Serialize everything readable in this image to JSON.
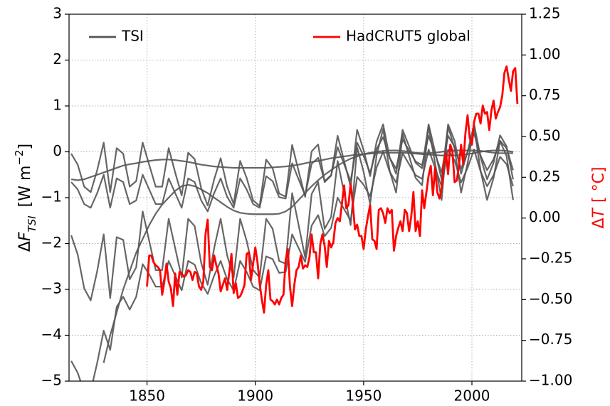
{
  "chart_data": {
    "type": "line",
    "ylabel": {
      "delta": "Δ",
      "symbol": "F",
      "sub": "TSI",
      "unit": "[W m",
      "sup": "−2",
      "end": "]"
    },
    "y2label": {
      "delta": "Δ",
      "symbol": "T",
      "unit": "[ °C]"
    },
    "xlim": [
      1814,
      2023
    ],
    "xticks": [
      1850,
      1900,
      1950,
      2000
    ],
    "ylim": [
      -5,
      3
    ],
    "yticks": [
      {
        "value": -5,
        "label": "−5"
      },
      {
        "value": -4,
        "label": "−4"
      },
      {
        "value": -3,
        "label": "−3"
      },
      {
        "value": -2,
        "label": "−2"
      },
      {
        "value": -1,
        "label": "−1"
      },
      0,
      1,
      2,
      3
    ],
    "y2lim": [
      -1,
      1.25
    ],
    "y2ticks": [
      {
        "value": -1,
        "label": "−1.00"
      },
      {
        "value": -0.75,
        "label": "−0.75"
      },
      {
        "value": -0.5,
        "label": "−0.50"
      },
      {
        "value": -0.25,
        "label": "−0.25"
      },
      {
        "value": 0,
        "label": "0.00"
      },
      {
        "value": 0.25,
        "label": "0.25"
      },
      {
        "value": 0.5,
        "label": "0.50"
      },
      {
        "value": 0.75,
        "label": "0.75"
      },
      {
        "value": 1,
        "label": "1.00"
      },
      {
        "value": 1.25,
        "label": "1.25"
      }
    ],
    "grid": true,
    "series": [
      {
        "name": "TSI",
        "color": "#555555",
        "axis": "y",
        "x": [
          1815,
          1818,
          1821,
          1824,
          1827,
          1830,
          1833,
          1836,
          1839,
          1842,
          1845,
          1848,
          1851,
          1854,
          1857,
          1860,
          1863,
          1866,
          1869,
          1872,
          1875,
          1878,
          1881,
          1884,
          1887,
          1890,
          1893,
          1896,
          1899,
          1902,
          1905,
          1908,
          1911,
          1914,
          1917,
          1920,
          1923,
          1926,
          1929,
          1932,
          1935,
          1938,
          1941,
          1944,
          1947,
          1950,
          1953,
          1956,
          1959,
          1962,
          1965,
          1968,
          1971,
          1974,
          1977,
          1980,
          1983,
          1986,
          1989,
          1992,
          1995,
          1998,
          2001,
          2004,
          2007,
          2010,
          2013,
          2016,
          2019
        ],
        "values": [
          [
            -0.66,
            -0.82,
            -1.14,
            -1.22,
            -0.9,
            -0.5,
            -1.22,
            -0.58,
            -0.66,
            -1.14,
            -1.06,
            -0.5,
            -0.82,
            -1.14,
            -1.14,
            -0.58,
            -0.9,
            -1.22,
            -0.58,
            -0.66,
            -1.06,
            -1.3,
            -0.9,
            -0.58,
            -0.98,
            -1.22,
            -0.58,
            -0.82,
            -1.14,
            -1.22,
            -0.53,
            -0.64,
            -0.99,
            -1.02,
            -0.25,
            -0.6,
            -0.95,
            -0.26,
            -0.13,
            -0.64,
            -0.51,
            0.1,
            -0.27,
            -0.64,
            0.2,
            -0.09,
            -0.46,
            0.06,
            0.32,
            -0.13,
            -0.37,
            0.27,
            0.03,
            -0.21,
            -0.29,
            0.35,
            -0.05,
            -0.45,
            0.35,
            0.11,
            -0.37,
            0,
            0.4,
            -0.08,
            -0.4,
            -0.16,
            0.24,
            0.08,
            -0.4
          ],
          [
            -0.04,
            -0.28,
            -0.76,
            -0.88,
            -0.4,
            0.2,
            -0.88,
            0.08,
            -0.04,
            -0.76,
            -0.64,
            0.2,
            -0.28,
            -0.76,
            -0.76,
            0.08,
            -0.45,
            -0.95,
            -0.02,
            -0.16,
            -0.79,
            -1.17,
            -0.6,
            -0.14,
            -0.76,
            -1.14,
            -0.2,
            -0.57,
            -1.06,
            -1.18,
            -0.17,
            -0.36,
            -0.91,
            -0.98,
            0.15,
            -0.42,
            -0.98,
            0.01,
            0.16,
            -0.66,
            -0.52,
            0.35,
            -0.2,
            -0.76,
            0.48,
            0.04,
            -0.53,
            0.22,
            0.6,
            -0.12,
            -0.48,
            0.48,
            0.12,
            -0.24,
            -0.36,
            0.6,
            0,
            -0.6,
            0.6,
            0.24,
            -0.48,
            0,
            0.6,
            -0.12,
            -0.6,
            -0.24,
            0.36,
            0.12,
            -0.6
          ],
          [
            -0.6,
            -0.62,
            -0.6,
            -0.55,
            -0.5,
            -0.45,
            -0.4,
            -0.35,
            -0.3,
            -0.27,
            -0.25,
            -0.22,
            -0.2,
            -0.18,
            -0.17,
            -0.17,
            -0.18,
            -0.2,
            -0.22,
            -0.25,
            -0.28,
            -0.3,
            -0.32,
            -0.33,
            -0.34,
            -0.35,
            -0.35,
            -0.35,
            -0.35,
            -0.35,
            -0.35,
            -0.34,
            -0.33,
            -0.32,
            -0.3,
            -0.28,
            -0.25,
            -0.22,
            -0.2,
            -0.17,
            -0.14,
            -0.12,
            -0.1,
            -0.08,
            -0.06,
            -0.05,
            -0.04,
            -0.03,
            -0.02,
            -0.02,
            -0.02,
            -0.02,
            -0.03,
            -0.04,
            -0.05,
            -0.06,
            -0.07,
            -0.08,
            -0.08,
            -0.08,
            -0.07,
            -0.05,
            -0.03,
            0,
            0.02,
            0.03,
            0.03,
            0.02,
            0
          ],
          [
            null,
            null,
            null,
            null,
            null,
            -4.6,
            -4.0,
            -3.5,
            -3.0,
            -2.6,
            -2.2,
            -1.9,
            -1.6,
            -1.35,
            -1.15,
            -1.0,
            -0.85,
            -0.75,
            -0.72,
            -0.75,
            -0.82,
            -0.9,
            -1.0,
            -1.1,
            -1.2,
            -1.28,
            -1.33,
            -1.35,
            -1.36,
            -1.36,
            -1.36,
            -1.36,
            -1.35,
            -1.3,
            -1.2,
            -1.05,
            -0.9,
            -0.75,
            -0.62,
            -0.5,
            -0.4,
            -0.3,
            -0.22,
            -0.15,
            -0.1,
            -0.05,
            -0.02,
            0,
            0.02,
            0.03,
            0.03,
            0.02,
            0,
            -0.02,
            -0.03,
            -0.03,
            -0.02,
            0,
            0.02,
            0.03,
            0.03,
            0.03,
            0.03,
            0.02,
            0,
            -0.02,
            -0.03,
            -0.03,
            -0.03
          ],
          [
            -1.82,
            -2.24,
            -2.98,
            -3.24,
            -2.6,
            -1.8,
            -3.19,
            -1.86,
            -1.92,
            -2.78,
            -2.52,
            -1.3,
            -1.94,
            -2.58,
            -2.58,
            -1.46,
            -2.1,
            -2.74,
            -1.46,
            -1.62,
            -2.42,
            -2.9,
            -2.1,
            -1.46,
            -2.26,
            -2.74,
            -1.46,
            -1.94,
            -2.58,
            -2.74,
            -1.46,
            -1.68,
            -2.38,
            -2.44,
            -0.9,
            -1.6,
            -2.3,
            -0.92,
            -0.66,
            -1.68,
            -1.42,
            -0.2,
            -0.9,
            -1.6,
            0.1,
            -0.44,
            -1.14,
            -0.08,
            0.5,
            -0.41,
            -0.89,
            0.39,
            -0.09,
            -0.57,
            -0.73,
            0.55,
            -0.25,
            -1.05,
            0.55,
            0.07,
            -0.89,
            -0.25,
            0.55,
            -0.41,
            -1.05,
            -0.57,
            0.23,
            -0.09,
            -1.05
          ],
          [
            -4.56,
            -4.82,
            -5.24,
            -5.22,
            -4.6,
            -3.9,
            -4.32,
            -3.38,
            -3.16,
            -3.44,
            -3.16,
            -2.45,
            -2.67,
            -2.94,
            -2.94,
            -2.38,
            -2.7,
            -3.02,
            -2.38,
            -2.46,
            -2.86,
            -3.1,
            -2.7,
            -2.38,
            -2.78,
            -3.02,
            -2.38,
            -2.62,
            -2.94,
            -3.02,
            -2.28,
            -2.34,
            -2.64,
            -2.62,
            -1.8,
            -2.1,
            -2.4,
            -1.61,
            -1.38,
            -1.84,
            -1.66,
            -1.0,
            -1.25,
            -1.5,
            -0.55,
            -0.72,
            -0.97,
            -0.34,
            0,
            -0.43,
            -0.67,
            -0.03,
            -0.27,
            -0.51,
            -0.59,
            0.05,
            -0.35,
            -0.75,
            0.05,
            -0.19,
            -0.67,
            -0.35,
            0.05,
            -0.43,
            -0.75,
            -0.51,
            -0.11,
            -0.27,
            -0.75
          ]
        ]
      },
      {
        "name": "HadCRUT5 global",
        "color": "#ff0000",
        "axis": "y2",
        "x": [
          1850,
          1851,
          1852,
          1853,
          1854,
          1855,
          1856,
          1857,
          1858,
          1859,
          1860,
          1861,
          1862,
          1863,
          1864,
          1865,
          1866,
          1867,
          1868,
          1869,
          1870,
          1871,
          1872,
          1873,
          1874,
          1875,
          1876,
          1877,
          1878,
          1879,
          1880,
          1881,
          1882,
          1883,
          1884,
          1885,
          1886,
          1887,
          1888,
          1889,
          1890,
          1891,
          1892,
          1893,
          1894,
          1895,
          1896,
          1897,
          1898,
          1899,
          1900,
          1901,
          1902,
          1903,
          1904,
          1905,
          1906,
          1907,
          1908,
          1909,
          1910,
          1911,
          1912,
          1913,
          1914,
          1915,
          1916,
          1917,
          1918,
          1919,
          1920,
          1921,
          1922,
          1923,
          1924,
          1925,
          1926,
          1927,
          1928,
          1929,
          1930,
          1931,
          1932,
          1933,
          1934,
          1935,
          1936,
          1937,
          1938,
          1939,
          1940,
          1941,
          1942,
          1943,
          1944,
          1945,
          1946,
          1947,
          1948,
          1949,
          1950,
          1951,
          1952,
          1953,
          1954,
          1955,
          1956,
          1957,
          1958,
          1959,
          1960,
          1961,
          1962,
          1963,
          1964,
          1965,
          1966,
          1967,
          1968,
          1969,
          1970,
          1971,
          1972,
          1973,
          1974,
          1975,
          1976,
          1977,
          1978,
          1979,
          1980,
          1981,
          1982,
          1983,
          1984,
          1985,
          1986,
          1987,
          1988,
          1989,
          1990,
          1991,
          1992,
          1993,
          1994,
          1995,
          1996,
          1997,
          1998,
          1999,
          2000,
          2001,
          2002,
          2003,
          2004,
          2005,
          2006,
          2007,
          2008,
          2009,
          2010,
          2011,
          2012,
          2013,
          2014,
          2015,
          2016,
          2017,
          2018,
          2019,
          2020,
          2021
        ],
        "values": [
          -0.42,
          -0.23,
          -0.23,
          -0.27,
          -0.29,
          -0.3,
          -0.32,
          -0.47,
          -0.39,
          -0.28,
          -0.39,
          -0.43,
          -0.54,
          -0.34,
          -0.47,
          -0.33,
          -0.34,
          -0.36,
          -0.35,
          -0.32,
          -0.33,
          -0.38,
          -0.33,
          -0.34,
          -0.42,
          -0.44,
          -0.39,
          -0.1,
          -0.01,
          -0.3,
          -0.32,
          -0.23,
          -0.29,
          -0.34,
          -0.45,
          -0.41,
          -0.37,
          -0.44,
          -0.33,
          -0.22,
          -0.46,
          -0.4,
          -0.49,
          -0.48,
          -0.45,
          -0.41,
          -0.22,
          -0.21,
          -0.38,
          -0.28,
          -0.18,
          -0.27,
          -0.4,
          -0.5,
          -0.58,
          -0.41,
          -0.32,
          -0.5,
          -0.51,
          -0.53,
          -0.5,
          -0.53,
          -0.49,
          -0.47,
          -0.26,
          -0.19,
          -0.42,
          -0.54,
          -0.41,
          -0.32,
          -0.3,
          -0.23,
          -0.31,
          -0.29,
          -0.3,
          -0.24,
          -0.1,
          -0.21,
          -0.21,
          -0.37,
          -0.16,
          -0.1,
          -0.17,
          -0.3,
          -0.14,
          -0.18,
          -0.15,
          -0.03,
          0.0,
          -0.02,
          0.09,
          0.2,
          0.06,
          0.08,
          0.21,
          0.09,
          -0.07,
          -0.04,
          -0.11,
          -0.11,
          -0.19,
          -0.07,
          0.01,
          0.08,
          -0.13,
          -0.14,
          -0.19,
          0.05,
          0.06,
          0.03,
          -0.03,
          0.06,
          0.03,
          0.05,
          -0.2,
          -0.11,
          -0.06,
          -0.02,
          -0.08,
          0.05,
          0.03,
          -0.08,
          0.01,
          0.16,
          -0.08,
          -0.02,
          -0.11,
          0.17,
          0.06,
          0.16,
          0.26,
          0.32,
          0.14,
          0.31,
          0.16,
          0.12,
          0.18,
          0.33,
          0.4,
          0.27,
          0.45,
          0.41,
          0.22,
          0.23,
          0.32,
          0.45,
          0.33,
          0.52,
          0.63,
          0.49,
          0.45,
          0.59,
          0.64,
          0.64,
          0.58,
          0.69,
          0.64,
          0.65,
          0.54,
          0.66,
          0.72,
          0.61,
          0.65,
          0.68,
          0.75,
          0.89,
          0.93,
          0.85,
          0.78,
          0.9,
          0.92,
          0.7
        ]
      }
    ]
  }
}
